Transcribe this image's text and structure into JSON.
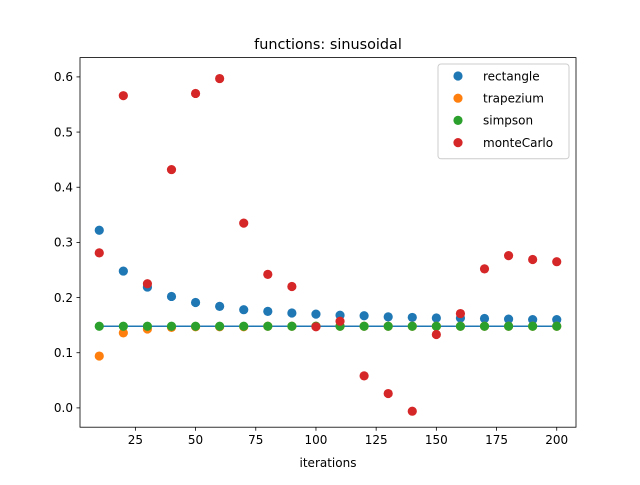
{
  "chart_data": {
    "type": "scatter",
    "title": "functions: sinusoidal",
    "xlabel": "iterations",
    "ylabel": "",
    "xlim": [
      2,
      208
    ],
    "ylim": [
      -0.035,
      0.635
    ],
    "xticks": [
      25,
      50,
      75,
      100,
      125,
      150,
      175,
      200
    ],
    "yticks": [
      0.0,
      0.1,
      0.2,
      0.3,
      0.4,
      0.5,
      0.6
    ],
    "grid": false,
    "legend_position": "upper right",
    "reference_line": {
      "y": 0.148,
      "x_from": 10,
      "x_to": 200,
      "color": "#1f77b4"
    },
    "x": [
      10,
      20,
      30,
      40,
      50,
      60,
      70,
      80,
      90,
      100,
      110,
      120,
      130,
      140,
      150,
      160,
      170,
      180,
      190,
      200
    ],
    "series": [
      {
        "name": "rectangle",
        "color": "#1f77b4",
        "values": [
          0.322,
          0.248,
          0.219,
          0.202,
          0.191,
          0.184,
          0.178,
          0.175,
          0.172,
          0.17,
          0.168,
          0.167,
          0.165,
          0.164,
          0.163,
          0.163,
          0.162,
          0.161,
          0.16,
          0.16
        ]
      },
      {
        "name": "trapezium",
        "color": "#ff7f0e",
        "values": [
          0.094,
          0.136,
          0.143,
          0.146,
          0.147,
          0.147,
          0.147,
          0.148,
          0.148,
          0.148,
          0.148,
          0.148,
          0.148,
          0.148,
          0.148,
          0.148,
          0.148,
          0.148,
          0.148,
          0.148
        ]
      },
      {
        "name": "simpson",
        "color": "#2ca02c",
        "values": [
          0.148,
          0.148,
          0.148,
          0.148,
          0.148,
          0.148,
          0.148,
          0.148,
          0.148,
          0.148,
          0.148,
          0.148,
          0.148,
          0.148,
          0.148,
          0.148,
          0.148,
          0.148,
          0.148,
          0.148
        ]
      },
      {
        "name": "monteCarlo",
        "color": "#d62728",
        "values": [
          0.281,
          0.566,
          0.225,
          0.432,
          0.57,
          0.597,
          0.335,
          0.242,
          0.22,
          0.147,
          0.157,
          0.058,
          0.026,
          -0.006,
          0.133,
          0.171,
          0.252,
          0.276,
          0.269,
          0.265
        ]
      }
    ]
  }
}
